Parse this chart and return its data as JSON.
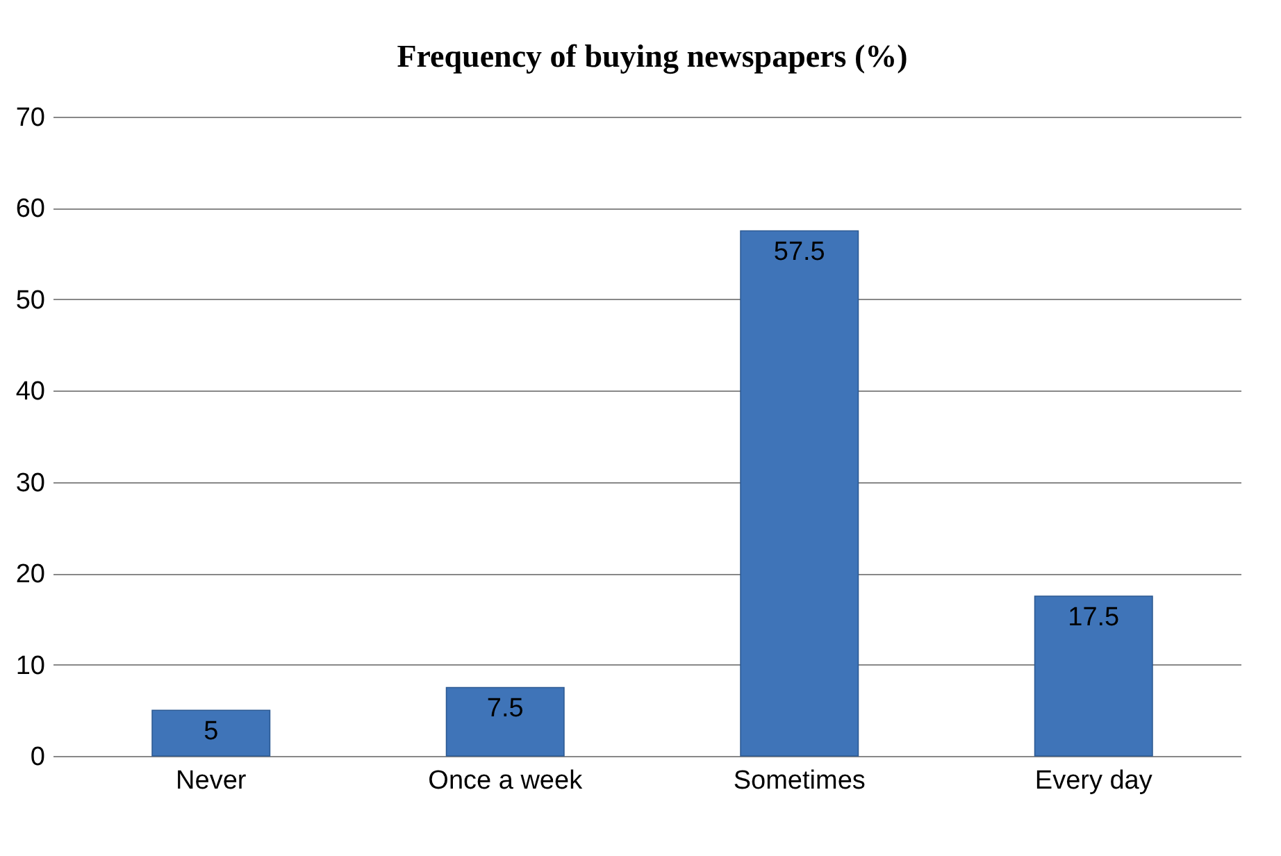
{
  "chart_data": {
    "type": "bar",
    "title": "Frequency of buying newspapers (%)",
    "categories": [
      "Never",
      "Once a week",
      "Sometimes",
      "Every day"
    ],
    "values": [
      5,
      7.5,
      57.5,
      17.5
    ],
    "color": "#3f74b8",
    "ylim": [
      0,
      70
    ],
    "yticks": [
      0,
      10,
      20,
      30,
      40,
      50,
      60,
      70
    ],
    "grid": "y",
    "data_labels": true
  }
}
